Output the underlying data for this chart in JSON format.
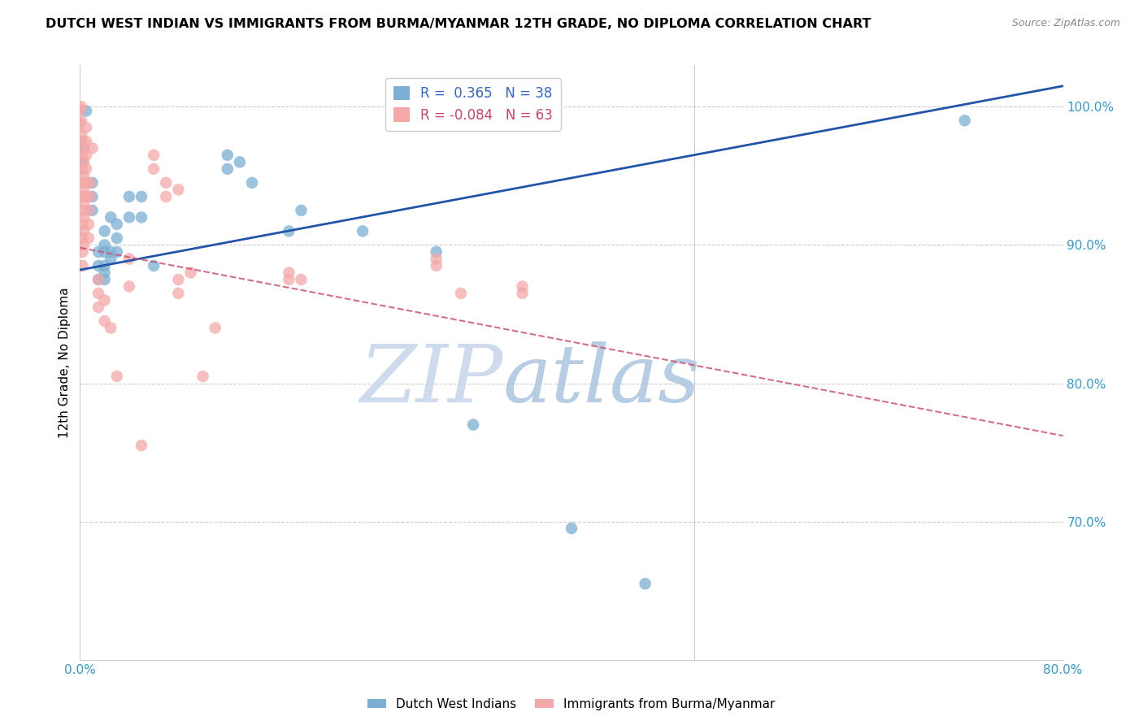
{
  "title": "DUTCH WEST INDIAN VS IMMIGRANTS FROM BURMA/MYANMAR 12TH GRADE, NO DIPLOMA CORRELATION CHART",
  "source": "Source: ZipAtlas.com",
  "ylabel": "12th Grade, No Diploma",
  "r_blue": 0.365,
  "n_blue": 38,
  "r_pink": -0.084,
  "n_pink": 63,
  "xlim": [
    0.0,
    0.8
  ],
  "ylim": [
    0.6,
    1.03
  ],
  "yticks": [
    0.7,
    0.8,
    0.9,
    1.0
  ],
  "ytick_labels": [
    "70.0%",
    "80.0%",
    "90.0%",
    "100.0%"
  ],
  "xtick_positions": [
    0.0,
    0.1,
    0.2,
    0.3,
    0.4,
    0.5,
    0.6,
    0.7,
    0.8
  ],
  "xtick_labels": [
    "0.0%",
    "",
    "",
    "",
    "",
    "",
    "",
    "",
    "80.0%"
  ],
  "color_blue": "#7BAFD4",
  "color_pink": "#F4A8A8",
  "color_blue_line": "#2255AA",
  "color_pink_line": "#CC5577",
  "legend_label_blue": "Dutch West Indians",
  "legend_label_pink": "Immigrants from Burma/Myanmar",
  "watermark_zip": "ZIP",
  "watermark_atlas": "atlas",
  "blue_line_x": [
    0.0,
    0.8
  ],
  "blue_line_y": [
    0.882,
    1.015
  ],
  "pink_line_x": [
    0.0,
    0.8
  ],
  "pink_line_y": [
    0.898,
    0.762
  ],
  "blue_points": [
    [
      0.002,
      0.97
    ],
    [
      0.002,
      0.96
    ],
    [
      0.005,
      0.997
    ],
    [
      0.01,
      0.935
    ],
    [
      0.01,
      0.945
    ],
    [
      0.01,
      0.925
    ],
    [
      0.015,
      0.895
    ],
    [
      0.015,
      0.885
    ],
    [
      0.015,
      0.875
    ],
    [
      0.02,
      0.91
    ],
    [
      0.02,
      0.9
    ],
    [
      0.02,
      0.895
    ],
    [
      0.02,
      0.885
    ],
    [
      0.02,
      0.88
    ],
    [
      0.02,
      0.875
    ],
    [
      0.025,
      0.92
    ],
    [
      0.025,
      0.895
    ],
    [
      0.025,
      0.89
    ],
    [
      0.03,
      0.915
    ],
    [
      0.03,
      0.905
    ],
    [
      0.03,
      0.895
    ],
    [
      0.04,
      0.935
    ],
    [
      0.04,
      0.92
    ],
    [
      0.05,
      0.935
    ],
    [
      0.05,
      0.92
    ],
    [
      0.06,
      0.885
    ],
    [
      0.12,
      0.965
    ],
    [
      0.12,
      0.955
    ],
    [
      0.14,
      0.945
    ],
    [
      0.18,
      0.925
    ],
    [
      0.23,
      0.91
    ],
    [
      0.29,
      0.895
    ],
    [
      0.32,
      0.77
    ],
    [
      0.4,
      0.695
    ],
    [
      0.46,
      0.655
    ],
    [
      0.72,
      0.99
    ],
    [
      0.13,
      0.96
    ],
    [
      0.17,
      0.91
    ]
  ],
  "pink_points": [
    [
      0.001,
      1.0
    ],
    [
      0.001,
      0.99
    ],
    [
      0.001,
      0.98
    ],
    [
      0.002,
      0.975
    ],
    [
      0.002,
      0.965
    ],
    [
      0.002,
      0.955
    ],
    [
      0.002,
      0.945
    ],
    [
      0.002,
      0.935
    ],
    [
      0.002,
      0.925
    ],
    [
      0.002,
      0.915
    ],
    [
      0.002,
      0.905
    ],
    [
      0.002,
      0.895
    ],
    [
      0.002,
      0.885
    ],
    [
      0.003,
      0.97
    ],
    [
      0.003,
      0.96
    ],
    [
      0.003,
      0.95
    ],
    [
      0.003,
      0.94
    ],
    [
      0.003,
      0.93
    ],
    [
      0.003,
      0.92
    ],
    [
      0.003,
      0.91
    ],
    [
      0.003,
      0.9
    ],
    [
      0.005,
      0.985
    ],
    [
      0.005,
      0.975
    ],
    [
      0.005,
      0.965
    ],
    [
      0.005,
      0.955
    ],
    [
      0.005,
      0.945
    ],
    [
      0.005,
      0.935
    ],
    [
      0.007,
      0.925
    ],
    [
      0.007,
      0.915
    ],
    [
      0.007,
      0.905
    ],
    [
      0.008,
      0.945
    ],
    [
      0.008,
      0.935
    ],
    [
      0.01,
      0.97
    ],
    [
      0.015,
      0.875
    ],
    [
      0.015,
      0.865
    ],
    [
      0.015,
      0.855
    ],
    [
      0.02,
      0.86
    ],
    [
      0.02,
      0.845
    ],
    [
      0.025,
      0.84
    ],
    [
      0.03,
      0.805
    ],
    [
      0.04,
      0.89
    ],
    [
      0.04,
      0.87
    ],
    [
      0.05,
      0.755
    ],
    [
      0.08,
      0.94
    ],
    [
      0.08,
      0.875
    ],
    [
      0.08,
      0.865
    ],
    [
      0.1,
      0.805
    ],
    [
      0.17,
      0.88
    ],
    [
      0.17,
      0.875
    ],
    [
      0.18,
      0.875
    ],
    [
      0.29,
      0.89
    ],
    [
      0.29,
      0.885
    ],
    [
      0.31,
      0.865
    ],
    [
      0.36,
      0.87
    ],
    [
      0.36,
      0.865
    ],
    [
      0.0,
      0.998
    ],
    [
      0.0,
      0.988
    ],
    [
      0.06,
      0.965
    ],
    [
      0.06,
      0.955
    ],
    [
      0.07,
      0.945
    ],
    [
      0.07,
      0.935
    ],
    [
      0.09,
      0.88
    ],
    [
      0.11,
      0.84
    ]
  ]
}
